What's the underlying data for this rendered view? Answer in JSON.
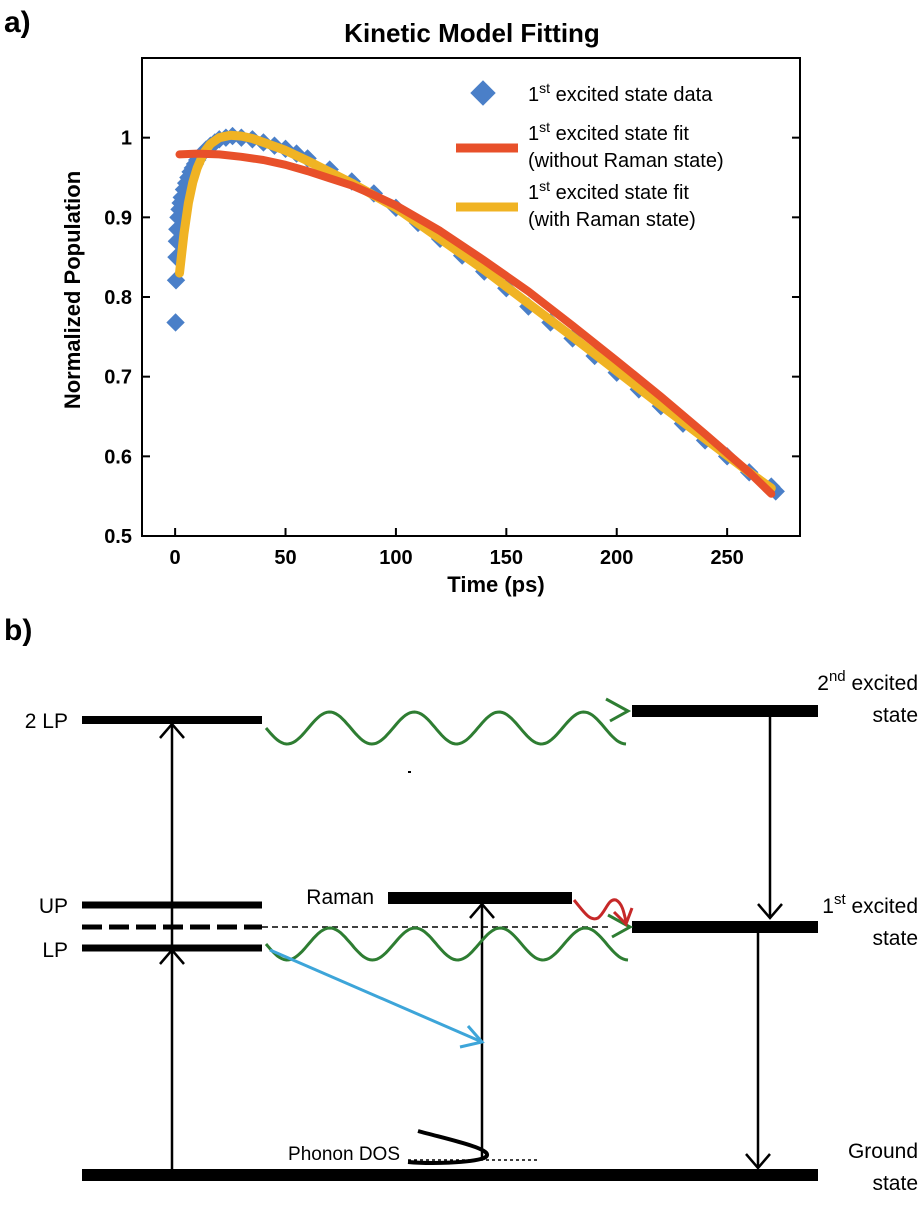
{
  "panel_a_label": "a)",
  "panel_b_label": "b)",
  "chart_data": {
    "type": "scatter",
    "title": "Kinetic Model Fitting",
    "xlabel": "Time (ps)",
    "ylabel": "Normalized Population",
    "xlim": [
      -15,
      283
    ],
    "ylim": [
      0.5,
      1.1
    ],
    "xticks": [
      0,
      50,
      100,
      150,
      200,
      250
    ],
    "yticks": [
      0.5,
      0.6,
      0.7,
      0.8,
      0.9,
      1
    ],
    "grid": false,
    "legend_position": "top-right",
    "colors": {
      "data": "#4a7fc8",
      "fit_without": "#e8502a",
      "fit_with": "#f0b323"
    },
    "legend": [
      {
        "main": "1",
        "sup": "st",
        "rest": " excited state data",
        "line2": ""
      },
      {
        "main": "1",
        "sup": "st",
        "rest": " excited state fit",
        "line2": "(without Raman state)"
      },
      {
        "main": "1",
        "sup": "st",
        "rest": " excited state fit",
        "line2": "(with Raman state)"
      }
    ],
    "series": [
      {
        "name": "1st excited state data",
        "kind": "markers",
        "x": [
          0.2,
          0.4,
          0.6,
          0.8,
          1.0,
          1.5,
          2,
          2.5,
          3,
          4,
          5,
          6,
          7,
          8,
          9,
          10,
          12,
          14,
          16,
          18,
          20,
          23,
          26,
          30,
          35,
          40,
          45,
          50,
          55,
          60,
          70,
          80,
          90,
          100,
          110,
          120,
          130,
          140,
          150,
          160,
          170,
          180,
          190,
          200,
          210,
          220,
          230,
          240,
          250,
          260,
          270,
          272
        ],
        "y": [
          0.768,
          0.821,
          0.85,
          0.87,
          0.885,
          0.9,
          0.91,
          0.918,
          0.925,
          0.935,
          0.943,
          0.95,
          0.957,
          0.962,
          0.967,
          0.972,
          0.979,
          0.985,
          0.99,
          0.994,
          0.998,
          1.0,
          1.002,
          1.0,
          0.998,
          0.994,
          0.99,
          0.986,
          0.98,
          0.974,
          0.96,
          0.945,
          0.93,
          0.912,
          0.893,
          0.873,
          0.852,
          0.832,
          0.811,
          0.788,
          0.768,
          0.748,
          0.726,
          0.705,
          0.684,
          0.663,
          0.641,
          0.62,
          0.6,
          0.58,
          0.562,
          0.556
        ]
      },
      {
        "name": "1st excited state fit (with Raman state)",
        "kind": "line",
        "x": [
          2,
          4,
          6,
          8,
          10,
          13,
          16,
          20,
          25,
          30,
          35,
          40,
          50,
          60,
          80,
          100,
          120,
          140,
          160,
          180,
          200,
          220,
          240,
          260,
          270
        ],
        "y": [
          0.83,
          0.88,
          0.918,
          0.944,
          0.962,
          0.981,
          0.992,
          1.0,
          1.003,
          1.002,
          0.999,
          0.994,
          0.984,
          0.971,
          0.943,
          0.912,
          0.873,
          0.834,
          0.792,
          0.75,
          0.707,
          0.664,
          0.622,
          0.58,
          0.56
        ]
      },
      {
        "name": "1st excited state fit (without Raman state)",
        "kind": "line",
        "x": [
          2,
          10,
          20,
          30,
          40,
          50,
          60,
          70,
          80,
          90,
          100,
          120,
          140,
          160,
          180,
          200,
          220,
          240,
          260,
          270
        ],
        "y": [
          0.979,
          0.98,
          0.979,
          0.976,
          0.972,
          0.966,
          0.958,
          0.949,
          0.94,
          0.928,
          0.915,
          0.883,
          0.846,
          0.807,
          0.764,
          0.72,
          0.675,
          0.628,
          0.58,
          0.553
        ]
      }
    ]
  },
  "diagram": {
    "colors": {
      "green": "#2e7d32",
      "blue": "#3da5d9",
      "red": "#c62828"
    },
    "left_levels": {
      "two_lp": "2 LP",
      "up": "UP",
      "lp": "LP"
    },
    "raman": "Raman",
    "phonon_dos": "Phonon DOS",
    "second_excited": {
      "main": "2",
      "sup": "nd",
      "rest": " excited",
      "line2": "state"
    },
    "first_excited": {
      "main": "1",
      "sup": "st",
      "rest": " excited",
      "line2": "state"
    },
    "ground": {
      "line1": "Ground",
      "line2": "state"
    }
  }
}
